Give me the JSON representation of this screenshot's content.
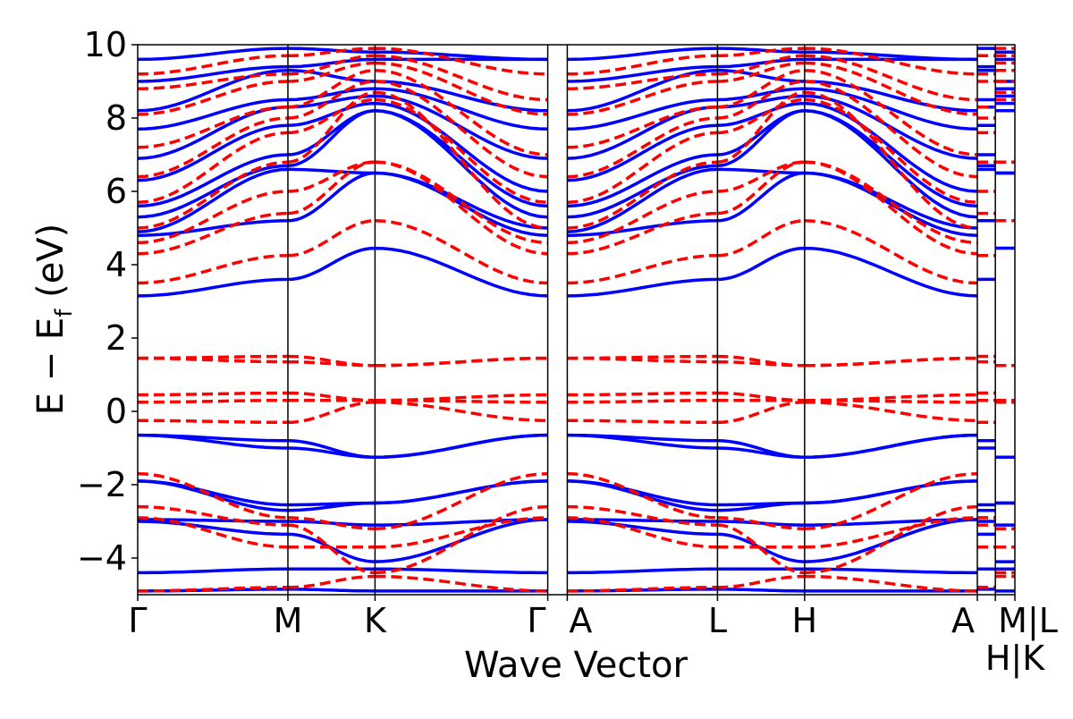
{
  "chart_data": {
    "type": "line",
    "title": "",
    "xlabel": "Wave Vector",
    "ylabel": "E − E_f (eV)",
    "ylabel_main": "E − E",
    "ylabel_sub": "f",
    "ylabel_unit": " (eV)",
    "ylim": [
      -5,
      10
    ],
    "yticks": [
      -4,
      -2,
      0,
      2,
      4,
      6,
      8,
      10
    ],
    "ytick_labels": [
      "−4",
      "−2",
      "0",
      "2",
      "4",
      "6",
      "8",
      "10"
    ],
    "grid": false,
    "kpoints": [
      {
        "label": "Γ",
        "k": 0.0
      },
      {
        "label": "M",
        "k": 1.0
      },
      {
        "label": "K",
        "k": 1.58
      },
      {
        "label": "Γ",
        "k": 2.73
      },
      {
        "label": "A",
        "k": 2.86
      },
      {
        "label": "L",
        "k": 3.86
      },
      {
        "label": "H",
        "k": 4.44
      },
      {
        "label": "A",
        "k": 5.59
      },
      {
        "label": "M|L",
        "k": 5.71
      },
      {
        "label": "H|K",
        "k": 5.84
      }
    ],
    "series": [
      {
        "style": "solid",
        "color": "#0000ff",
        "bands_at_G_M_K_G": [
          [
            -4.9,
            -4.85,
            -4.9,
            -4.9
          ],
          [
            -4.4,
            -4.3,
            -4.3,
            -4.4
          ],
          [
            -3.0,
            -3.35,
            -4.1,
            -2.95
          ],
          [
            -2.95,
            -3.0,
            -3.1,
            -2.95
          ],
          [
            -1.9,
            -2.7,
            -2.5,
            -1.9
          ],
          [
            -1.9,
            -2.55,
            -2.5,
            -1.9
          ],
          [
            -0.65,
            -0.8,
            -1.25,
            -0.65
          ],
          [
            -0.65,
            -1.0,
            -1.25,
            -0.65
          ],
          [
            3.15,
            3.6,
            4.45,
            3.15
          ],
          [
            4.8,
            5.2,
            6.5,
            4.8
          ],
          [
            4.9,
            6.6,
            6.5,
            5.0
          ],
          [
            5.3,
            6.7,
            8.2,
            5.3
          ],
          [
            5.6,
            7.0,
            8.2,
            5.6
          ],
          [
            6.3,
            7.8,
            8.4,
            6.0
          ],
          [
            6.9,
            8.3,
            8.6,
            6.9
          ],
          [
            7.7,
            8.5,
            8.8,
            7.7
          ],
          [
            8.2,
            9.3,
            9.0,
            8.2
          ],
          [
            9.0,
            9.4,
            9.6,
            9.6
          ],
          [
            9.6,
            9.9,
            9.8,
            9.6
          ]
        ]
      },
      {
        "style": "dashed",
        "color": "#ff0000",
        "bands_at_G_M_K_G": [
          [
            -4.9,
            -4.8,
            -4.5,
            -4.9
          ],
          [
            -2.9,
            -3.7,
            -3.7,
            -2.9
          ],
          [
            -2.6,
            -3.1,
            -4.4,
            -2.6
          ],
          [
            -1.7,
            -2.9,
            -3.2,
            -1.7
          ],
          [
            -0.25,
            -0.3,
            0.25,
            -0.25
          ],
          [
            0.25,
            0.3,
            0.3,
            0.25
          ],
          [
            0.45,
            0.5,
            0.3,
            0.45
          ],
          [
            1.45,
            1.35,
            1.25,
            1.45
          ],
          [
            1.45,
            1.5,
            1.25,
            1.45
          ],
          [
            3.5,
            4.25,
            5.2,
            3.5
          ],
          [
            4.3,
            5.4,
            6.8,
            4.3
          ],
          [
            4.6,
            6.0,
            6.8,
            4.6
          ],
          [
            5.0,
            6.8,
            8.7,
            5.0
          ],
          [
            5.7,
            7.6,
            8.5,
            5.7
          ],
          [
            6.4,
            8.0,
            9.0,
            6.4
          ],
          [
            7.2,
            8.3,
            9.3,
            7.0
          ],
          [
            8.1,
            9.0,
            9.5,
            8.1
          ],
          [
            8.8,
            9.2,
            9.7,
            8.5
          ],
          [
            9.2,
            9.7,
            9.9,
            9.2
          ]
        ]
      }
    ]
  }
}
